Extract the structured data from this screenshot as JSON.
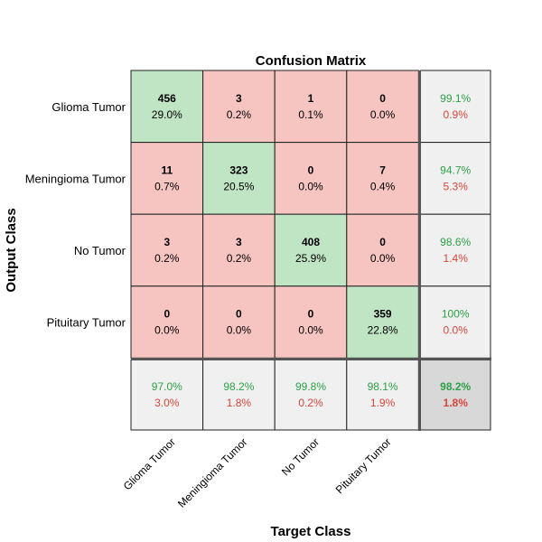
{
  "chart_data": {
    "type": "heatmap",
    "title": "Confusion Matrix",
    "xlabel": "Target Class",
    "ylabel": "Output Class",
    "classes": [
      "Glioma Tumor",
      "Meningioma Tumor",
      "No Tumor",
      "Pituitary Tumor"
    ],
    "counts": [
      [
        456,
        3,
        1,
        0
      ],
      [
        11,
        323,
        0,
        7
      ],
      [
        3,
        3,
        408,
        0
      ],
      [
        0,
        0,
        0,
        359
      ]
    ],
    "cell_percents": [
      [
        "29.0%",
        "0.2%",
        "0.1%",
        "0.0%"
      ],
      [
        "0.7%",
        "20.5%",
        "0.0%",
        "0.4%"
      ],
      [
        "0.2%",
        "0.2%",
        "25.9%",
        "0.0%"
      ],
      [
        "0.0%",
        "0.0%",
        "0.0%",
        "22.8%"
      ]
    ],
    "row_summary": [
      {
        "correct": "99.1%",
        "wrong": "0.9%"
      },
      {
        "correct": "94.7%",
        "wrong": "5.3%"
      },
      {
        "correct": "98.6%",
        "wrong": "1.4%"
      },
      {
        "correct": "100%",
        "wrong": "0.0%"
      }
    ],
    "col_summary": [
      {
        "correct": "97.0%",
        "wrong": "3.0%"
      },
      {
        "correct": "98.2%",
        "wrong": "1.8%"
      },
      {
        "correct": "99.8%",
        "wrong": "0.2%"
      },
      {
        "correct": "98.1%",
        "wrong": "1.9%"
      }
    ],
    "overall": {
      "correct": "98.2%",
      "wrong": "1.8%"
    },
    "colors": {
      "correct_cell": "#bfe5c4",
      "wrong_cell": "#f6c4c1",
      "summary_cell": "#f0f0f0",
      "overall_cell": "#d8d8d8",
      "correct_text": "#2ca048",
      "wrong_text": "#d9453a",
      "grid": "#222222"
    }
  }
}
